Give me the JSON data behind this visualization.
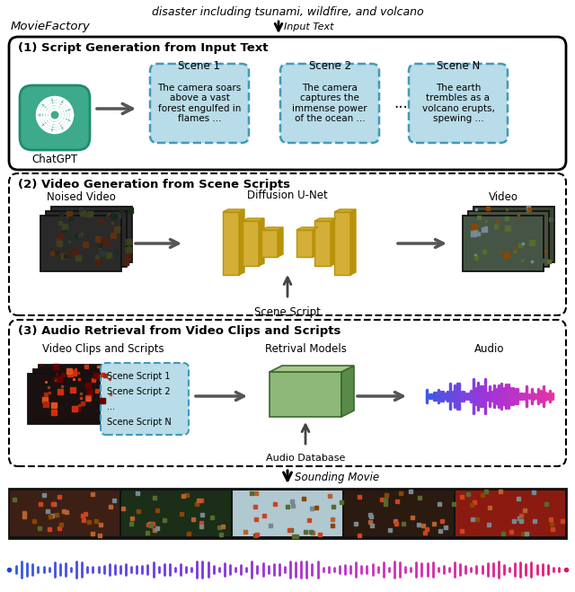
{
  "title_text": "disaster including tsunami, wildfire, and volcano",
  "movie_factory_label": "MovieFactory",
  "input_text_label": "Input Text",
  "sounding_movie_label": "Sounding Movie",
  "section1_title": "(1) Script Generation from Input Text",
  "section2_title": "(2) Video Generation from Scene Scripts",
  "section3_title": "(3) Audio Retrieval from Video Clips and Scripts",
  "scene_labels": [
    "Scene 1",
    "Scene 2",
    "Scene N"
  ],
  "scene_texts": [
    "The camera soars\nabove a vast\nforest engulfed in\nflames ...",
    "The camera\ncaptures the\nimmense power\nof the ocean ...",
    "The earth\ntrembles as a\nvolcano erupts,\nspewing ..."
  ],
  "chatgpt_label": "ChatGPT",
  "chatgpt_color": "#3DAA8C",
  "scene_box_color": "#B8DCE8",
  "scene_box_edge": "#4499BB",
  "noised_video_label": "Noised Video",
  "diffusion_unet_label": "Diffusion U-Net",
  "video_label": "Video",
  "scene_script_label": "Scene Script",
  "video_clips_label": "Video Clips and Scripts",
  "retrieval_label": "Retrival Models",
  "audio_label": "Audio",
  "audio_database_label": "Audio Database",
  "scene_script_items": [
    "Scene Script 1",
    "Scene Script 2",
    "...",
    "Scene Script N"
  ],
  "bg_color": "#FFFFFF",
  "arrow_color": "#555555",
  "unet_color": "#D4AF37",
  "unet_dark": "#B8920A",
  "retrieval_color": "#8DB87A",
  "retrieval_dark": "#5A8A4A",
  "retrieval_top": "#A8C890"
}
